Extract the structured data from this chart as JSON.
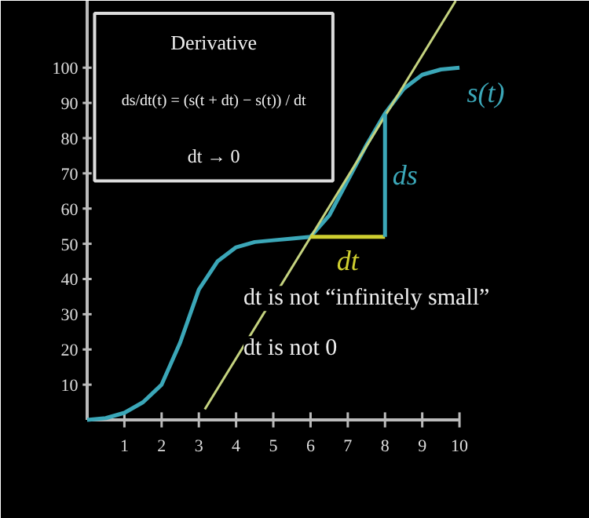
{
  "chart_data": {
    "type": "line",
    "xlim": [
      0,
      10
    ],
    "ylim": [
      0,
      119
    ],
    "xticks": [
      1,
      2,
      3,
      4,
      5,
      6,
      7,
      8,
      9,
      10
    ],
    "yticks": [
      10,
      20,
      30,
      40,
      50,
      60,
      70,
      80,
      90,
      100
    ],
    "series": [
      {
        "name": "s(t)",
        "color": "#3ba7b8",
        "x": [
          0,
          0.5,
          1,
          1.5,
          2,
          2.5,
          3,
          3.5,
          4,
          4.5,
          5,
          5.5,
          6,
          6.5,
          7,
          7.5,
          8,
          8.5,
          9,
          9.5,
          10
        ],
        "values": [
          0,
          0.5,
          2,
          5,
          10,
          22,
          37,
          45,
          49,
          50.5,
          51,
          51.5,
          52,
          58,
          68,
          78,
          87,
          94,
          98,
          99.5,
          100
        ]
      },
      {
        "color": "#c5d37f",
        "x": [
          3.16,
          9.9
        ],
        "values": [
          3,
          119
        ]
      },
      {
        "name": "dt",
        "color": "#cfcf30",
        "x": [
          6,
          8
        ],
        "values": [
          52,
          52
        ]
      },
      {
        "name": "ds",
        "color": "#3ba7b8",
        "x": [
          8,
          8
        ],
        "values": [
          52,
          87
        ]
      }
    ],
    "annotations": [
      "Derivative",
      "ds/dt(t) = (s(t + dt) − s(t)) / dt",
      "dt → 0",
      "dt is not “infinitely small”",
      "dt is not 0"
    ]
  }
}
